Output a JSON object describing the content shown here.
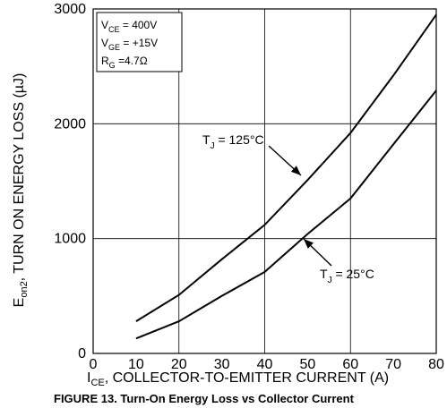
{
  "chart_data": {
    "type": "line",
    "caption": "FIGURE 13. Turn-On Energy Loss vs Collector Current",
    "xlabel": {
      "main": "I",
      "sub": "CE",
      "rest": ", COLLECTOR-TO-EMITTER CURRENT (A)"
    },
    "ylabel": {
      "main": "E",
      "sub": "on2",
      "rest": ", TURN ON ENERGY LOSS (µJ)"
    },
    "xlim": [
      0,
      80
    ],
    "ylim": [
      0,
      3000
    ],
    "xticks": [
      "0",
      "10",
      "20",
      "30",
      "40",
      "50",
      "60",
      "70",
      "80"
    ],
    "yticks": [
      {
        "value": 0,
        "label": "0"
      },
      {
        "value": 1000,
        "label": "1000"
      },
      {
        "value": 2000,
        "label": "2000"
      },
      {
        "value": 3000,
        "label": "3000"
      }
    ],
    "grid": true,
    "conditions": [
      {
        "main": "V",
        "sub": "CE",
        "rest": " =  400V"
      },
      {
        "main": "V",
        "sub": "GE",
        "rest": " =  +15V"
      },
      {
        "main": "R",
        "sub": "G",
        "rest": " =4.7Ω"
      }
    ],
    "series": [
      {
        "annotation": {
          "main": "T",
          "sub": "J",
          "rest": " = 125°C"
        },
        "x": [
          10,
          20,
          30,
          40,
          50,
          60,
          70,
          80
        ],
        "y": [
          280,
          510,
          820,
          1120,
          1510,
          1920,
          2420,
          2950
        ]
      },
      {
        "annotation": {
          "main": "T",
          "sub": "J",
          "rest": " = 25°C"
        },
        "x": [
          10,
          20,
          30,
          40,
          50,
          60,
          70,
          80
        ],
        "y": [
          130,
          280,
          500,
          710,
          1040,
          1350,
          1820,
          2290
        ]
      }
    ]
  }
}
